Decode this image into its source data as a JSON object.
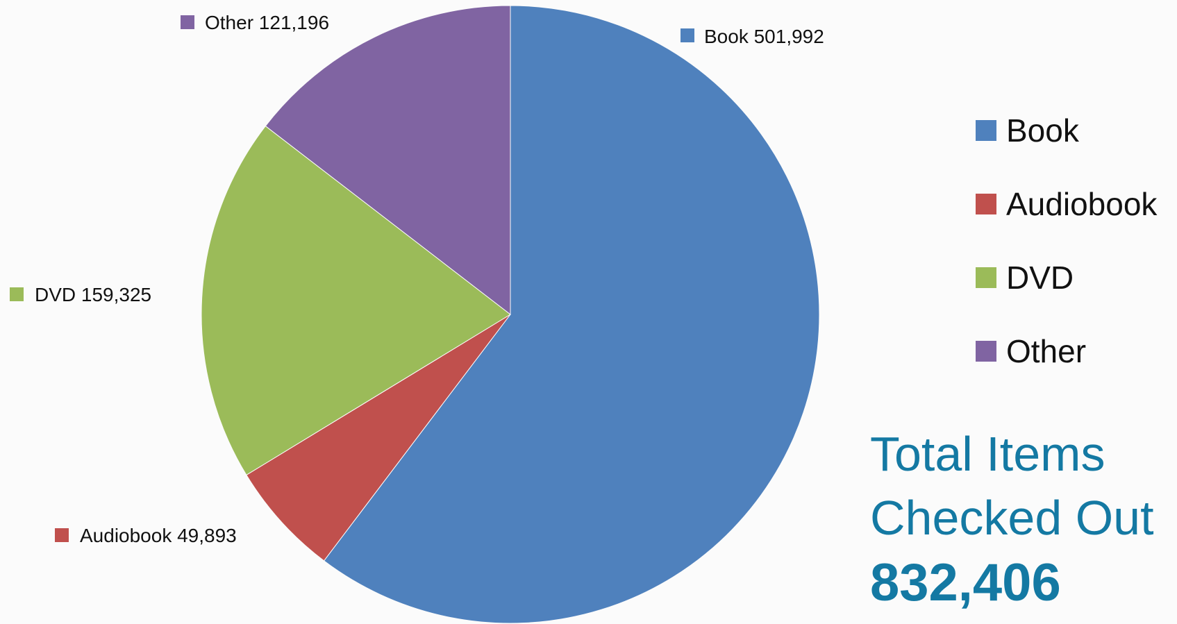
{
  "chart_data": {
    "type": "pie",
    "title": "",
    "categories": [
      "Book",
      "Audiobook",
      "DVD",
      "Other"
    ],
    "values": [
      501992,
      49893,
      159325,
      121196
    ],
    "data_labels": [
      "Book 501,992",
      "Audiobook 49,893",
      "DVD 159,325",
      "Other 121,196"
    ],
    "colors": [
      "#4f81bd",
      "#c0504d",
      "#9bbb59",
      "#8064a2"
    ],
    "start_angle_deg": 0,
    "direction": "clockwise",
    "legend": {
      "position": "right",
      "entries": [
        "Book",
        "Audiobook",
        "DVD",
        "Other"
      ]
    }
  },
  "summary": {
    "line1": "Total Items",
    "line2": "Checked Out",
    "total": "832,406",
    "color": "#1479a3"
  }
}
